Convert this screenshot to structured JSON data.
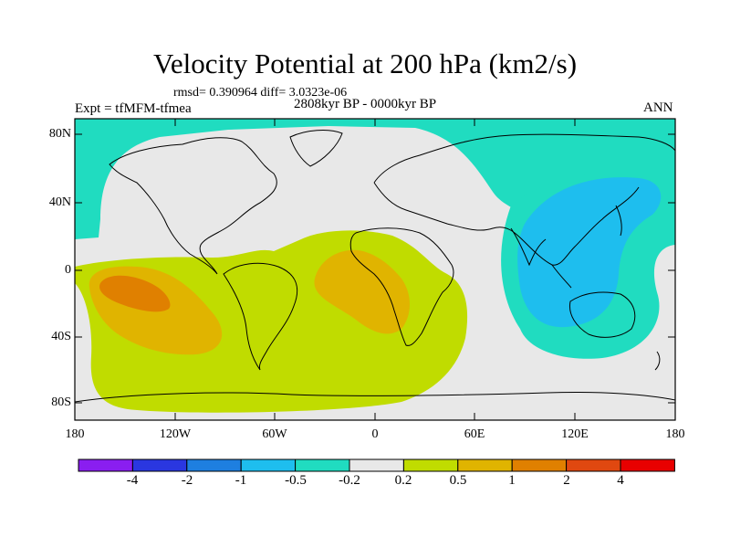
{
  "title": "Velocity Potential at 200 hPa (km2/s)",
  "stats_line": "rmsd= 0.390964  diff= 3.0323e-06",
  "experiment": "Expt = tfMFM-tfmea",
  "period": "2808kyr BP - 0000kyr BP",
  "season": "ANN",
  "lat_labels": [
    "80N",
    "40N",
    "0",
    "40S",
    "80S"
  ],
  "lon_labels": [
    "180",
    "120W",
    "60W",
    "0",
    "60E",
    "120E",
    "180"
  ],
  "colorbar": {
    "labels": [
      "-4",
      "-2",
      "-1",
      "-0.5",
      "-0.2",
      "0.2",
      "0.5",
      "1",
      "2",
      "4"
    ],
    "colors": [
      "#8a1ef0",
      "#2a37e0",
      "#1e7fe0",
      "#1ebeee",
      "#20dcc0",
      "#e8e8e8",
      "#c0dc00",
      "#e0b400",
      "#e08000",
      "#e04810",
      "#e80000"
    ]
  }
}
